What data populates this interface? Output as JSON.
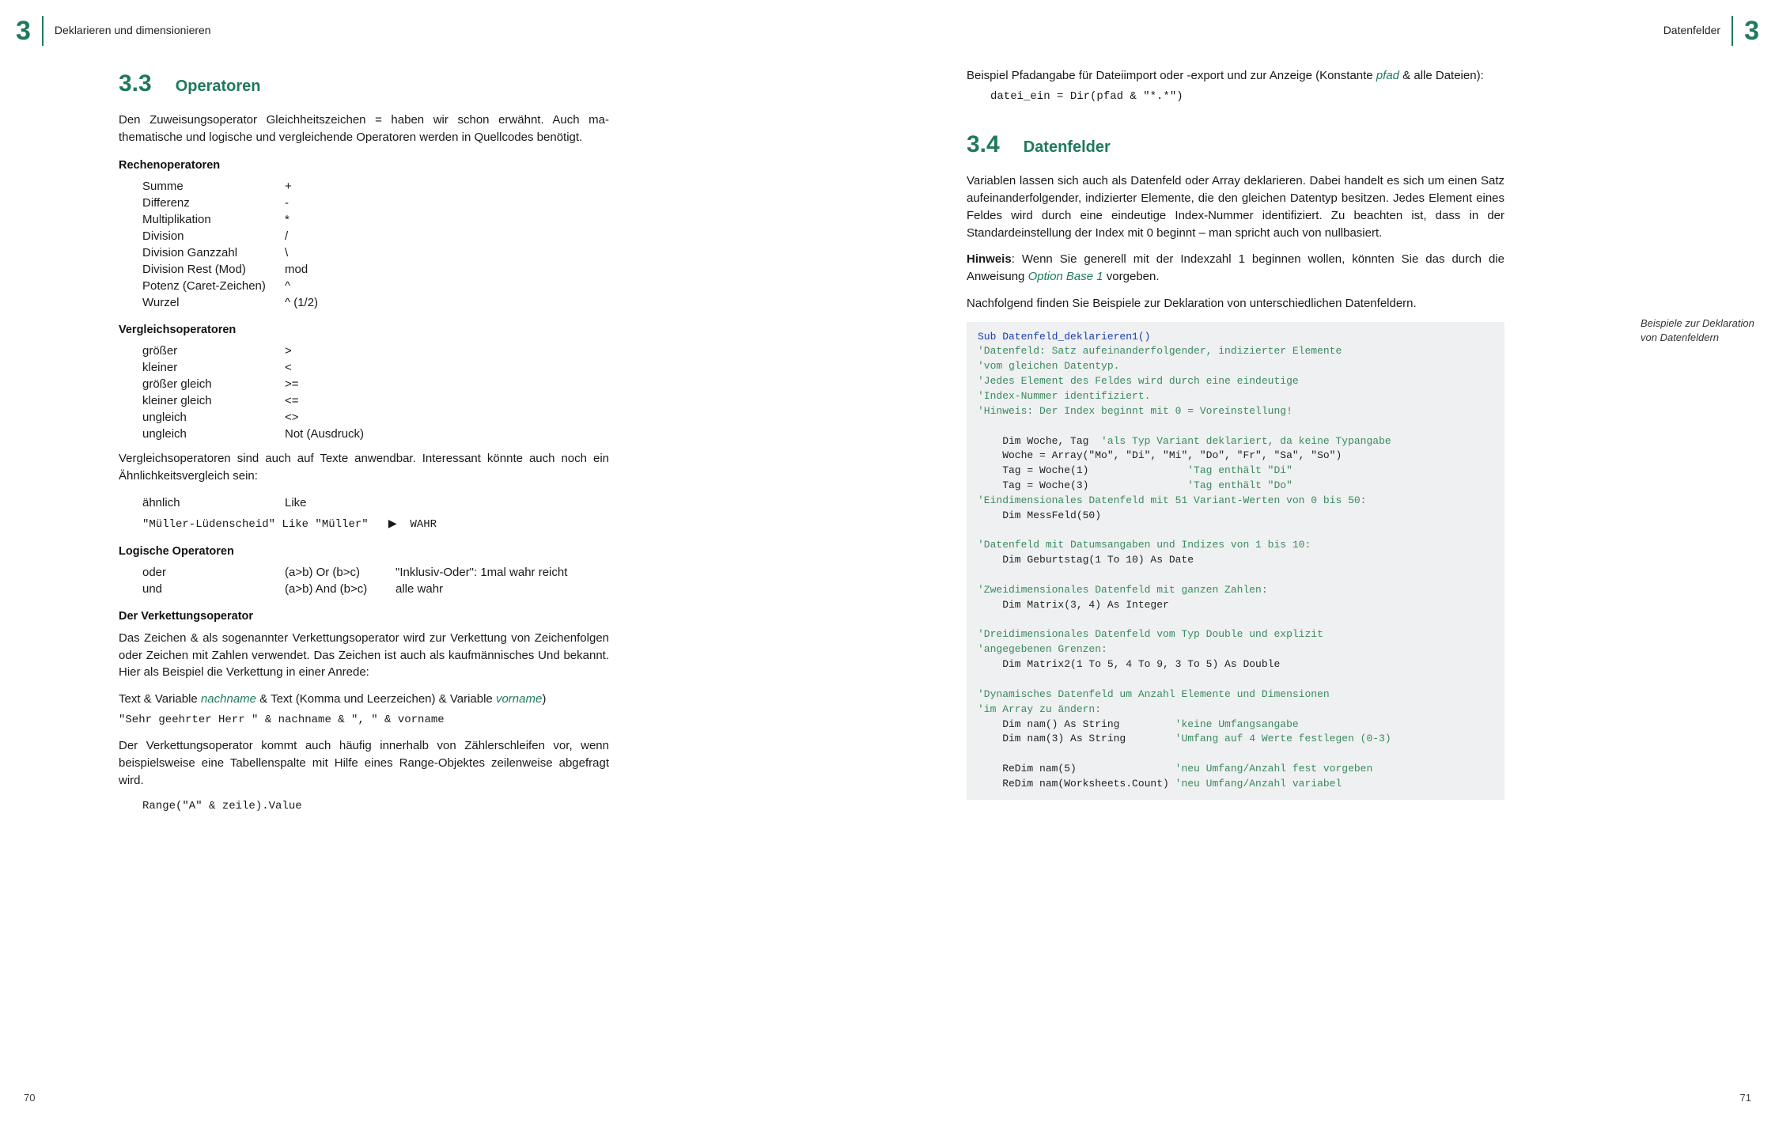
{
  "colors": {
    "accent": "#1f7a5a",
    "code_bg": "#eef0f1",
    "code_comment": "#3a8a5f",
    "code_keyword": "#1a3db0",
    "text": "#1a1a1a"
  },
  "header_left": {
    "chapter_num": "3",
    "text": "Deklarieren und dimensionieren"
  },
  "header_right": {
    "chapter_num": "3",
    "text": "Datenfelder"
  },
  "page_left_num": "70",
  "page_right_num": "71",
  "sec33": {
    "num": "3.3",
    "title": "Operatoren",
    "intro": "Den Zuweisungsoperator Gleichheitszeichen = haben wir schon erwähnt. Auch ma­thematische und logische und vergleichende Operatoren werden in Quellcodes be­nötigt.",
    "rechen_head": "Rechenoperatoren",
    "rechen": [
      {
        "name": "Summe",
        "sym": "+"
      },
      {
        "name": "Differenz",
        "sym": "-"
      },
      {
        "name": "Multiplikation",
        "sym": "*"
      },
      {
        "name": "Division",
        "sym": "/"
      },
      {
        "name": "Division Ganzzahl",
        "sym": "\\"
      },
      {
        "name": "Division Rest (Mod)",
        "sym": "mod"
      },
      {
        "name": "Potenz (Caret-Zeichen)",
        "sym": "^"
      },
      {
        "name": "Wurzel",
        "sym": "^ (1/2)"
      }
    ],
    "vergleich_head": "Vergleichsoperatoren",
    "vergleich": [
      {
        "name": "größer",
        "sym": ">"
      },
      {
        "name": "kleiner",
        "sym": "<"
      },
      {
        "name": "größer gleich",
        "sym": ">="
      },
      {
        "name": "kleiner gleich",
        "sym": "<="
      },
      {
        "name": "ungleich",
        "sym": "<>"
      },
      {
        "name": "ungleich",
        "sym": "Not (Ausdruck)"
      }
    ],
    "vergleich_note": "Vergleichsoperatoren sind auch auf Texte anwendbar. Interessant könnte auch noch ein Ähnlichkeitsvergleich sein:",
    "like_row": {
      "name": "ähnlich",
      "sym": "Like"
    },
    "like_example_pre": "\"Müller-Lüdenscheid\" Like \"Müller\"",
    "like_example_arrow": "▶",
    "like_example_post": "WAHR",
    "logisch_head": "Logische Operatoren",
    "logisch": [
      {
        "name": "oder",
        "sym": "(a>b) Or (b>c)",
        "desc": "\"Inklusiv-Oder\": 1mal wahr reicht"
      },
      {
        "name": "und",
        "sym": "(a>b) And (b>c)",
        "desc": "alle wahr"
      }
    ],
    "verkettung_head": "Der Verkettungsoperator",
    "verkettung_p1": "Das Zeichen & als sogenannter Verkettungsoperator wird zur Verkettung von Zeichen­folgen oder Zeichen mit Zahlen verwendet. Das Zeichen ist auch als kaufmännisches Und bekannt. Hier als Beispiel die Verkettung in einer Anrede:",
    "verk_line_prefix1": "Text & Variable ",
    "verk_term1": "nachname",
    "verk_line_mid": " & Text (Komma und Leerzeichen) & Variable ",
    "verk_term2": "vorname",
    "verk_line_suffix": ")",
    "verk_code": "\"Sehr geehrter Herr \" & nachname & \", \" & vorname",
    "verkettung_p2": "Der Verkettungsoperator kommt auch häufig innerhalb von Zählerschleifen vor, wenn beispielsweise eine Tabellenspalte mit Hilfe eines Range-Objektes zeilenweise abge­fragt wird.",
    "range_code": "Range(\"A\" & zeile).Value"
  },
  "right_top": {
    "p1_pre": "Beispiel Pfadangabe für Dateiimport oder -export und zur Anzeige (Konstante ",
    "p1_term": "pfad",
    "p1_post": " & alle Dateien):",
    "code": "datei_ein = Dir(pfad & \"*.*\")"
  },
  "sec34": {
    "num": "3.4",
    "title": "Datenfelder",
    "p1": "Variablen lassen sich auch als Datenfeld oder Array deklarieren. Dabei handelt es sich um einen Satz aufeinanderfolgender, indizierter Elemente, die den gleichen Daten­typ besitzen. Jedes Element eines Feldes wird durch eine eindeutige Index-Nummer identifiziert. Zu beachten ist, dass in der Standardeinstellung der Index mit 0 beginnt – man spricht auch von nullbasiert.",
    "hinweis_label": "Hinweis",
    "hinweis_pre": ": Wenn Sie generell mit der Indexzahl 1 beginnen wollen, könnten Sie das durch die Anweisung ",
    "hinweis_term": "Option Base 1",
    "hinweis_post": " vorgeben.",
    "p3": "Nachfolgend finden Sie Beispiele zur Deklaration von unterschiedlichen Datenfeldern.",
    "margin_note": "Beispiele zur Deklaration von Datenfeldern",
    "code_lines": [
      {
        "t": "kw",
        "s": "Sub Datenfeld_deklarieren1()"
      },
      {
        "t": "c",
        "s": "'Datenfeld: Satz aufeinanderfolgender, indizierter Elemente"
      },
      {
        "t": "c",
        "s": "'vom gleichen Datentyp."
      },
      {
        "t": "c",
        "s": "'Jedes Element des Feldes wird durch eine eindeutige"
      },
      {
        "t": "c",
        "s": "'Index-Nummer identifiziert."
      },
      {
        "t": "c",
        "s": "'Hinweis: Der Index beginnt mit 0 = Voreinstellung!"
      },
      {
        "t": "",
        "s": ""
      },
      {
        "t": "mix",
        "s": "    Dim Woche, Tag  ",
        "c": "'als Typ Variant deklariert, da keine Typangabe"
      },
      {
        "t": "",
        "s": "    Woche = Array(\"Mo\", \"Di\", \"Mi\", \"Do\", \"Fr\", \"Sa\", \"So\")"
      },
      {
        "t": "mix",
        "s": "    Tag = Woche(1)                ",
        "c": "'Tag enthält \"Di\""
      },
      {
        "t": "mix",
        "s": "    Tag = Woche(3)                ",
        "c": "'Tag enthält \"Do\""
      },
      {
        "t": "c",
        "s": "'Eindimensionales Datenfeld mit 51 Variant-Werten von 0 bis 50:"
      },
      {
        "t": "",
        "s": "    Dim MessFeld(50)"
      },
      {
        "t": "",
        "s": ""
      },
      {
        "t": "c",
        "s": "'Datenfeld mit Datumsangaben und Indizes von 1 bis 10:"
      },
      {
        "t": "",
        "s": "    Dim Geburtstag(1 To 10) As Date"
      },
      {
        "t": "",
        "s": ""
      },
      {
        "t": "c",
        "s": "'Zweidimensionales Datenfeld mit ganzen Zahlen:"
      },
      {
        "t": "",
        "s": "    Dim Matrix(3, 4) As Integer"
      },
      {
        "t": "",
        "s": ""
      },
      {
        "t": "c",
        "s": "'Dreidimensionales Datenfeld vom Typ Double und explizit"
      },
      {
        "t": "c",
        "s": "'angegebenen Grenzen:"
      },
      {
        "t": "",
        "s": "    Dim Matrix2(1 To 5, 4 To 9, 3 To 5) As Double"
      },
      {
        "t": "",
        "s": ""
      },
      {
        "t": "c",
        "s": "'Dynamisches Datenfeld um Anzahl Elemente und Dimensionen"
      },
      {
        "t": "c",
        "s": "'im Array zu ändern:"
      },
      {
        "t": "mix",
        "s": "    Dim nam() As String         ",
        "c": "'keine Umfangsangabe"
      },
      {
        "t": "mix",
        "s": "    Dim nam(3) As String        ",
        "c": "'Umfang auf 4 Werte festlegen (0-3)"
      },
      {
        "t": "",
        "s": ""
      },
      {
        "t": "mix",
        "s": "    ReDim nam(5)                ",
        "c": "'neu Umfang/Anzahl fest vorgeben"
      },
      {
        "t": "mix",
        "s": "    ReDim nam(Worksheets.Count) ",
        "c": "'neu Umfang/Anzahl variabel"
      }
    ]
  }
}
